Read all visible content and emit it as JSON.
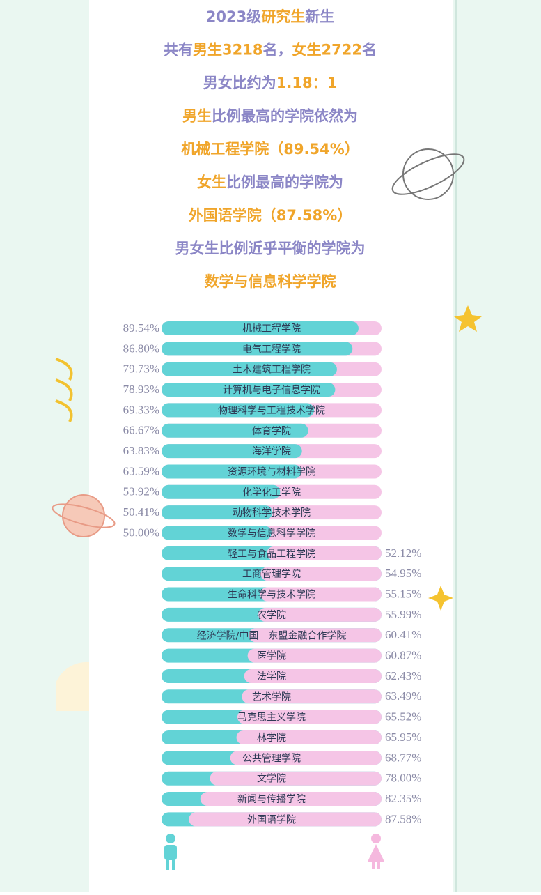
{
  "chart_data": {
    "type": "hbar",
    "header_lines": [
      [
        {
          "text": "2023级",
          "color": "#8b86c6"
        },
        {
          "text": "研究生",
          "color": "#f0a52a"
        },
        {
          "text": "新生",
          "color": "#8b86c6"
        }
      ],
      [
        {
          "text": "共有",
          "color": "#8b86c6"
        },
        {
          "text": "男生3218",
          "color": "#f0a52a"
        },
        {
          "text": "名，",
          "color": "#8b86c6"
        },
        {
          "text": "女生2722",
          "color": "#f0a52a"
        },
        {
          "text": "名",
          "color": "#8b86c6"
        }
      ],
      [
        {
          "text": "男女比约为",
          "color": "#8b86c6"
        },
        {
          "text": "1.18：1",
          "color": "#f0a52a"
        }
      ],
      [
        {
          "text": "男生",
          "color": "#f0a52a"
        },
        {
          "text": "比例最高的学院依然为",
          "color": "#8b86c6"
        }
      ],
      [
        {
          "text": "机械工程学院（89.54%）",
          "color": "#f0a52a"
        }
      ],
      [
        {
          "text": "女生",
          "color": "#f0a52a"
        },
        {
          "text": "比例最高的学院为",
          "color": "#8b86c6"
        }
      ],
      [
        {
          "text": "外国语学院（87.58%）",
          "color": "#f0a52a"
        }
      ],
      [
        {
          "text": "男女生比例近乎平衡的学院为",
          "color": "#8b86c6"
        }
      ],
      [
        {
          "text": "数学与信息科学学院",
          "color": "#f0a52a"
        }
      ]
    ],
    "categories": [
      "机械工程学院",
      "电气工程学院",
      "土木建筑工程学院",
      "计算机与电子信息学院",
      "物理科学与工程技术学院",
      "体育学院",
      "海洋学院",
      "资源环境与材料学院",
      "化学化工学院",
      "动物科学技术学院",
      "数学与信息科学学院",
      "轻工与食品工程学院",
      "工商管理学院",
      "生命科学与技术学院",
      "农学院",
      "经济学院/中国—东盟金融合作学院",
      "医学院",
      "法学院",
      "艺术学院",
      "马克思主义学院",
      "林学院",
      "公共管理学院",
      "文学院",
      "新闻与传播学院",
      "外国语学院"
    ],
    "xlim": [
      0,
      100
    ],
    "series": [
      {
        "color": "#62d3d6",
        "side": "left",
        "values": [
          89.54,
          86.8,
          79.73,
          78.93,
          69.33,
          66.67,
          63.83,
          63.59,
          53.92,
          50.41,
          50.0,
          null,
          null,
          null,
          null,
          null,
          null,
          null,
          null,
          null,
          null,
          null,
          null,
          null,
          null
        ],
        "value_labels": [
          "89.54%",
          "86.80%",
          "79.73%",
          "78.93%",
          "69.33%",
          "66.67%",
          "63.83%",
          "63.59%",
          "53.92%",
          "50.41%",
          "50.00%",
          null,
          null,
          null,
          null,
          null,
          null,
          null,
          null,
          null,
          null,
          null,
          null,
          null,
          null
        ]
      },
      {
        "color": "#f5c5e6",
        "side": "right",
        "values": [
          null,
          null,
          null,
          null,
          null,
          null,
          null,
          null,
          null,
          null,
          null,
          52.12,
          54.95,
          55.15,
          55.99,
          60.41,
          60.87,
          62.43,
          63.49,
          65.52,
          65.95,
          68.77,
          78.0,
          82.35,
          87.58
        ],
        "value_labels": [
          null,
          null,
          null,
          null,
          null,
          null,
          null,
          null,
          null,
          null,
          null,
          "52.12%",
          "54.95%",
          "55.15%",
          "55.99%",
          "60.41%",
          "60.87%",
          "62.43%",
          "63.49%",
          "65.52%",
          "65.95%",
          "68.77%",
          "78.00%",
          "82.35%",
          "87.58%"
        ]
      }
    ]
  }
}
